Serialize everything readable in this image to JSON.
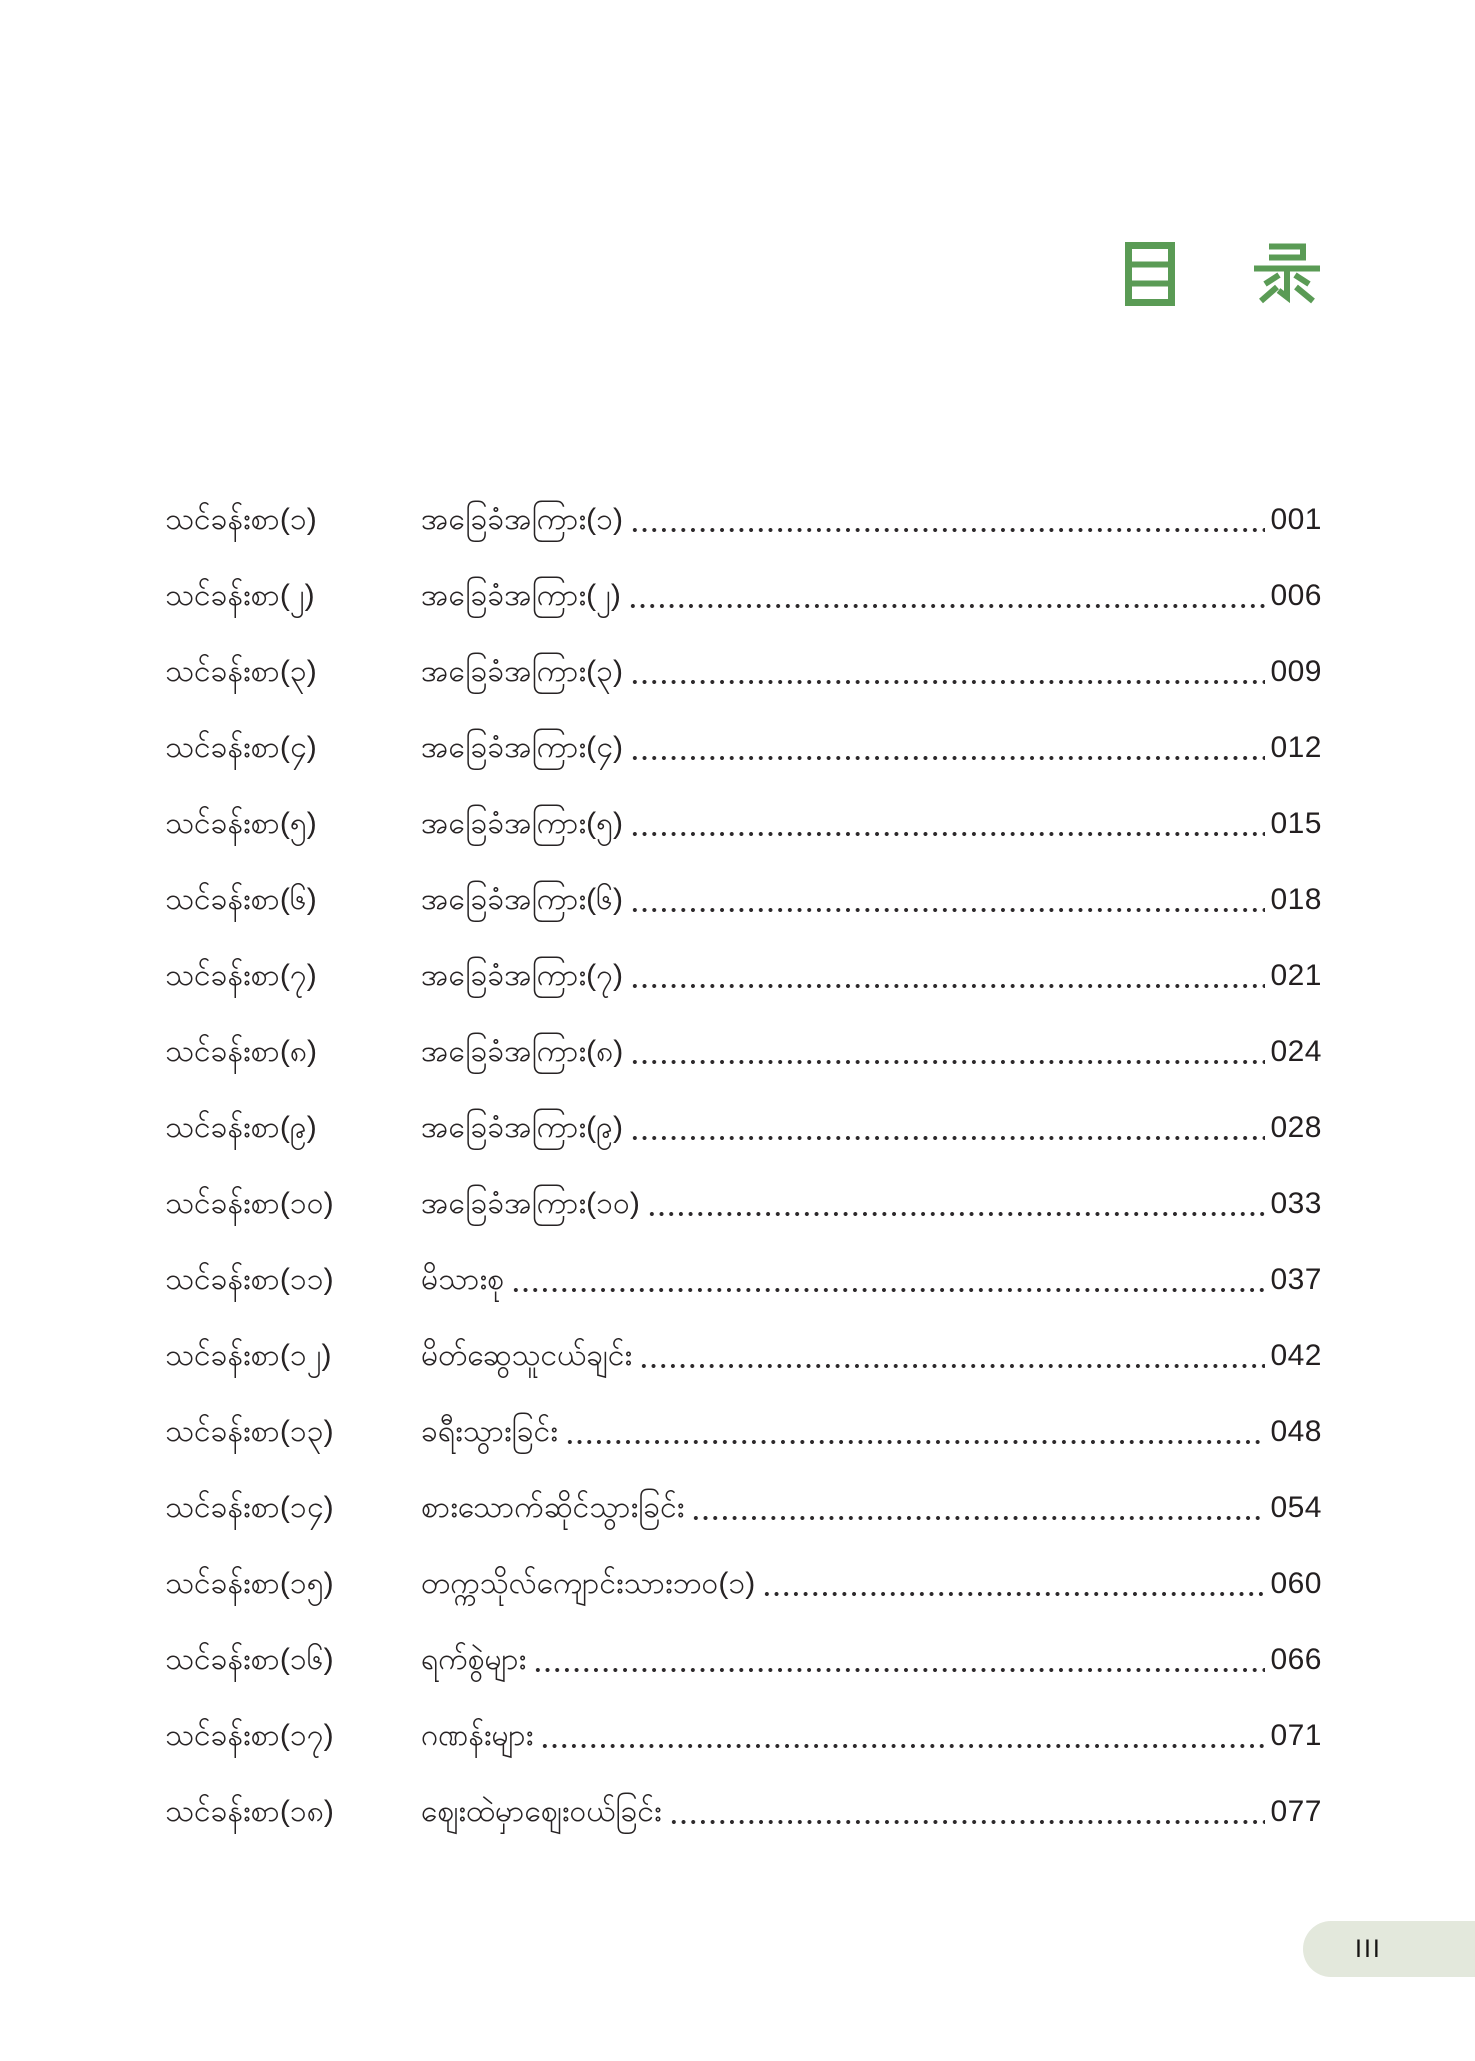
{
  "header": {
    "title": "目 录",
    "accent_color": "#5a9b55"
  },
  "toc": {
    "entries": [
      {
        "label": "သင်ခန်းစာ(၁)",
        "title": "အခြေခံအကြား(၁)",
        "page": "001"
      },
      {
        "label": "သင်ခန်းစာ(၂)",
        "title": "အခြေခံအကြား(၂)",
        "page": "006"
      },
      {
        "label": "သင်ခန်းစာ(၃)",
        "title": "အခြေခံအကြား(၃)",
        "page": "009"
      },
      {
        "label": "သင်ခန်းစာ(၄)",
        "title": "အခြေခံအကြား(၄)",
        "page": "012"
      },
      {
        "label": "သင်ခန်းစာ(၅)",
        "title": "အခြေခံအကြား(၅)",
        "page": "015"
      },
      {
        "label": "သင်ခန်းစာ(၆)",
        "title": "အခြေခံအကြား(၆)",
        "page": "018"
      },
      {
        "label": "သင်ခန်းစာ(၇)",
        "title": "အခြေခံအကြား(၇)",
        "page": "021"
      },
      {
        "label": "သင်ခန်းစာ(၈)",
        "title": "အခြေခံအကြား(၈)",
        "page": "024"
      },
      {
        "label": "သင်ခန်းစာ(၉)",
        "title": "အခြေခံအကြား(၉)",
        "page": "028"
      },
      {
        "label": "သင်ခန်းစာ(၁၀)",
        "title": "အခြေခံအကြား(၁၀)",
        "page": "033"
      },
      {
        "label": "သင်ခန်းစာ(၁၁)",
        "title": "မိသားစု",
        "page": "037"
      },
      {
        "label": "သင်ခန်းစာ(၁၂)",
        "title": "မိတ်ဆွေသူငယ်ချင်း",
        "page": "042"
      },
      {
        "label": "သင်ခန်းစာ(၁၃)",
        "title": "ခရီးသွားခြင်း",
        "page": "048"
      },
      {
        "label": "သင်ခန်းစာ(၁၄)",
        "title": "စားသောက်ဆိုင်သွားခြင်း",
        "page": "054"
      },
      {
        "label": "သင်ခန်းစာ(၁၅)",
        "title": "တက္ကသိုလ်ကျောင်းသားဘဝ(၁)",
        "page": "060"
      },
      {
        "label": "သင်ခန်းစာ(၁၆)",
        "title": "ရက်စွဲများ",
        "page": "066"
      },
      {
        "label": "သင်ခန်းစာ(၁၇)",
        "title": "ဂဏန်းများ",
        "page": "071"
      },
      {
        "label": "သင်ခန်းစာ(၁၈)",
        "title": "ဈေးထဲမှာဈေးဝယ်ခြင်း",
        "page": "077"
      }
    ]
  },
  "footer": {
    "page_number": "III",
    "badge_color": "#e3e8dc"
  }
}
